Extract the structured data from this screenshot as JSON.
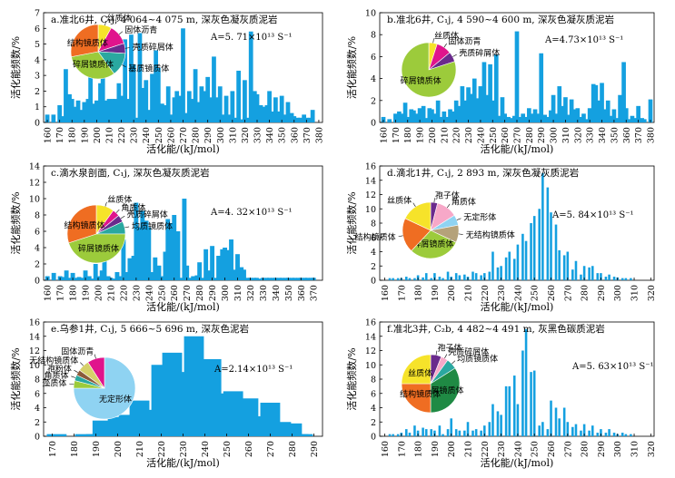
{
  "colors": {
    "bar": "#14a0e0",
    "axis": "#000000",
    "pie_stroke": "#ffffff",
    "leader": "#000000"
  },
  "chart_data": [
    {
      "id": "a",
      "type": "bar",
      "title": "a.准北6井, C₁j, 4 064~4 075 m, 深灰色凝灰质泥岩",
      "xlabel": "活化能/(kJ/mol)",
      "ylabel": "活化能频数/%",
      "ylim": [
        0,
        7
      ],
      "yticks": [
        0,
        1,
        2,
        3,
        4,
        5,
        6,
        7
      ],
      "xlim": [
        157,
        383
      ],
      "xticks": [
        160,
        170,
        180,
        190,
        200,
        210,
        220,
        230,
        240,
        250,
        260,
        270,
        280,
        290,
        300,
        310,
        320,
        330,
        340,
        350,
        360,
        370,
        380
      ],
      "annotation": "A=5. 71×10¹³ S⁻¹",
      "x": [
        160,
        165,
        170,
        172,
        175,
        178,
        180,
        183,
        185,
        188,
        190,
        193,
        195,
        198,
        200,
        203,
        205,
        208,
        210,
        213,
        215,
        218,
        220,
        223,
        225,
        228,
        230,
        233,
        235,
        238,
        240,
        243,
        245,
        248,
        250,
        253,
        255,
        258,
        260,
        263,
        265,
        268,
        270,
        273,
        275,
        278,
        280,
        283,
        285,
        288,
        290,
        293,
        295,
        298,
        300,
        303,
        305,
        308,
        310,
        313,
        315,
        318,
        320,
        323,
        325,
        328,
        330,
        333,
        335,
        338,
        340,
        343,
        345,
        348,
        350,
        353,
        355,
        358,
        360,
        363,
        365,
        368,
        370,
        373,
        375
      ],
      "values": [
        0.5,
        0.5,
        1.1,
        0.4,
        3.4,
        1.8,
        1.5,
        1.0,
        1.4,
        0.8,
        1.3,
        1.5,
        2.9,
        1.2,
        1.4,
        2.5,
        5.3,
        1.4,
        1.5,
        1.5,
        1.5,
        2.5,
        1.7,
        5.3,
        1.5,
        5.6,
        3.7,
        0.3,
        5.7,
        2.2,
        2.7,
        0.8,
        3.1,
        4.6,
        3.5,
        1.2,
        1.1,
        2.3,
        0.5,
        1.6,
        2.0,
        1.7,
        6.0,
        0.6,
        2.0,
        1.5,
        3.4,
        1.3,
        2.3,
        2.0,
        2.9,
        1.6,
        4.2,
        1.6,
        2.3,
        0.5,
        1.7,
        0.5,
        2.0,
        0.3,
        3.3,
        0.2,
        2.7,
        0.3,
        5.8,
        2.0,
        1.8,
        1.1,
        1.0,
        1.1,
        2.0,
        0.7,
        1.6,
        0.7,
        1.7,
        0.5,
        1.3,
        0.6,
        0.4,
        0.3,
        0.3,
        0.5,
        0.3,
        0.3,
        0.8
      ],
      "pie": {
        "slices": [
          {
            "label": "丝质体",
            "value": 8,
            "color": "#f6e32a"
          },
          {
            "label": "固体沥青",
            "value": 12,
            "color": "#e0148c"
          },
          {
            "label": "壳质碎屑体",
            "value": 6,
            "color": "#6a2a8c"
          },
          {
            "label": "基质镜质体",
            "value": 14,
            "color": "#2aa8a0"
          },
          {
            "label": "碎屑镜质体",
            "value": 32,
            "color": "#9ccb3b"
          },
          {
            "label": "结构镜质体",
            "value": 28,
            "color": "#ef6d22"
          }
        ]
      }
    },
    {
      "id": "b",
      "type": "bar",
      "title": "b.准北6井, C₁j, 4 590~4 600 m, 深灰色凝灰质泥岩",
      "xlabel": "活化能/(kJ/mol)",
      "ylabel": "活化能频数/%",
      "ylim": [
        0,
        10
      ],
      "yticks": [
        0,
        2,
        4,
        6,
        8,
        10
      ],
      "xlim": [
        157,
        383
      ],
      "xticks": [
        160,
        170,
        180,
        190,
        200,
        210,
        220,
        230,
        240,
        250,
        260,
        270,
        280,
        290,
        300,
        310,
        320,
        330,
        340,
        350,
        360,
        370,
        380
      ],
      "annotation": "A=4.73×10¹³ S⁻¹",
      "x": [
        160,
        165,
        170,
        173,
        175,
        178,
        180,
        183,
        185,
        188,
        190,
        193,
        195,
        198,
        200,
        203,
        205,
        208,
        210,
        213,
        215,
        218,
        220,
        223,
        225,
        228,
        230,
        233,
        235,
        238,
        240,
        243,
        245,
        248,
        250,
        253,
        255,
        258,
        260,
        263,
        265,
        268,
        270,
        273,
        275,
        278,
        280,
        283,
        285,
        288,
        290,
        293,
        295,
        298,
        300,
        303,
        305,
        308,
        310,
        313,
        315,
        318,
        320,
        323,
        325,
        328,
        330,
        333,
        335,
        338,
        340,
        343,
        345,
        348,
        350,
        353,
        355,
        358,
        360,
        363,
        365,
        368,
        370,
        373,
        375,
        380
      ],
      "values": [
        0.5,
        0.3,
        0.8,
        1.0,
        0.8,
        1.8,
        0.5,
        1.2,
        1.1,
        0.8,
        1.3,
        1.5,
        0.4,
        1.3,
        1.2,
        0.8,
        2.0,
        0.5,
        1.0,
        0.5,
        1.2,
        1.0,
        2.0,
        1.5,
        3.3,
        2.0,
        3.2,
        2.6,
        4.0,
        2.2,
        3.3,
        5.5,
        2.5,
        5.3,
        2.0,
        6.2,
        0.6,
        2.3,
        0.8,
        0.5,
        0.4,
        0.6,
        8.3,
        0.5,
        0.8,
        0.5,
        1.3,
        0.8,
        1.2,
        0.8,
        6.3,
        0.7,
        0.5,
        1.1,
        2.5,
        0.8,
        3.3,
        1.5,
        2.3,
        0.7,
        2.1,
        1.2,
        1.3,
        0.5,
        0.8,
        0.3,
        1.3,
        3.5,
        3.4,
        2.0,
        3.6,
        1.2,
        2.0,
        0.6,
        1.2,
        0.4,
        2.5,
        5.5,
        1.3,
        0.3,
        0.6,
        0.4,
        1.5,
        0.4,
        0.3,
        2.1
      ],
      "pie": {
        "slices": [
          {
            "label": "丝质体",
            "value": 5,
            "color": "#f6e32a"
          },
          {
            "label": "固体沥青",
            "value": 9,
            "color": "#e0148c"
          },
          {
            "label": "壳质碎屑体",
            "value": 6,
            "color": "#6a2a8c"
          },
          {
            "label": "碎屑镜质体",
            "value": 80,
            "color": "#9ccb3b"
          }
        ]
      }
    },
    {
      "id": "c",
      "type": "bar",
      "title": "c.滴水泉剖面, C₁j, 深灰色凝灰质泥岩",
      "xlabel": "活化能/(kJ/mol)",
      "ylabel": "活化能频数/%",
      "ylim": [
        0,
        14
      ],
      "yticks": [
        0,
        2,
        4,
        6,
        8,
        10,
        12,
        14
      ],
      "xlim": [
        157,
        377
      ],
      "xticks": [
        160,
        170,
        180,
        190,
        200,
        210,
        220,
        230,
        240,
        250,
        260,
        270,
        280,
        290,
        300,
        310,
        320,
        330,
        340,
        350,
        360,
        370
      ],
      "annotation": "A=4. 32×10¹³ S⁻¹",
      "x": [
        160,
        165,
        170,
        172,
        175,
        178,
        180,
        183,
        185,
        188,
        190,
        193,
        195,
        198,
        200,
        203,
        205,
        208,
        210,
        213,
        215,
        218,
        220,
        223,
        225,
        228,
        230,
        233,
        235,
        238,
        240,
        243,
        245,
        248,
        250,
        253,
        255,
        258,
        260,
        263,
        265,
        268,
        270,
        273,
        275,
        278,
        280,
        283,
        285,
        288,
        290,
        293,
        295,
        298,
        300,
        303,
        305,
        308,
        310,
        313,
        315,
        318,
        320,
        323,
        325,
        328,
        330,
        333,
        335,
        338,
        340,
        343,
        345,
        348,
        350,
        353,
        355,
        358,
        360,
        363,
        365,
        368,
        370
      ],
      "values": [
        0.5,
        0.9,
        0.5,
        0.4,
        1.2,
        0.3,
        0.9,
        0.3,
        0.4,
        0.3,
        1.2,
        0.5,
        0.2,
        2.0,
        0.5,
        1.2,
        3.0,
        0.5,
        0.3,
        0.2,
        1.0,
        0.5,
        5.0,
        1.0,
        2.7,
        3.0,
        9.5,
        6.5,
        8.5,
        7.3,
        6.5,
        1.0,
        2.8,
        1.8,
        0.5,
        3.5,
        7.5,
        7.0,
        8.0,
        6.0,
        0.3,
        10.0,
        1.8,
        0.3,
        0.5,
        0.6,
        2.2,
        0.3,
        3.8,
        1.2,
        4.2,
        0.3,
        3.0,
        3.8,
        4.0,
        3.7,
        5.0,
        1.3,
        3.2,
        1.6,
        1.3,
        0.3,
        0.3,
        0.3,
        0.3,
        0.2,
        0.3,
        0.3,
        0.3,
        0.3,
        0.3,
        0.3,
        0.3,
        0.3,
        0.3,
        0.3,
        0.3,
        0.3,
        0.3,
        0.3,
        0.3,
        0.3,
        0.3
      ],
      "pie": {
        "slices": [
          {
            "label": "丝质体",
            "value": 10,
            "color": "#f6e32a"
          },
          {
            "label": "角质体",
            "value": 4,
            "color": "#e0148c"
          },
          {
            "label": "壳质碎屑体",
            "value": 4,
            "color": "#6a2a8c"
          },
          {
            "label": "均质镜质体",
            "value": 7,
            "color": "#2aa8a0"
          },
          {
            "label": "碎屑镜质体",
            "value": 45,
            "color": "#9ccb3b"
          },
          {
            "label": "结构镜质体",
            "value": 30,
            "color": "#ef6d22"
          }
        ]
      }
    },
    {
      "id": "d",
      "type": "bar",
      "title": "d.滴北1井, C₁j, 2 893 m, 深灰色凝灰质泥岩",
      "xlabel": "活化能/(kJ/mol)",
      "ylabel": "活化能频数/%",
      "ylim": [
        0,
        16
      ],
      "yticks": [
        0,
        2,
        4,
        6,
        8,
        10,
        12,
        14,
        16
      ],
      "xlim": [
        157,
        322
      ],
      "xticks": [
        160,
        170,
        180,
        190,
        200,
        210,
        220,
        230,
        240,
        250,
        260,
        270,
        280,
        290,
        300,
        310,
        320
      ],
      "annotation": "A=5. 84×10¹³ S⁻¹",
      "x": [
        163,
        165,
        168,
        170,
        173,
        175,
        178,
        180,
        183,
        185,
        188,
        190,
        193,
        195,
        198,
        200,
        203,
        205,
        208,
        210,
        213,
        215,
        218,
        220,
        223,
        225,
        228,
        230,
        233,
        235,
        238,
        240,
        243,
        245,
        248,
        250,
        253,
        255,
        258,
        260,
        263,
        265,
        268,
        270,
        273,
        275,
        278,
        280,
        283,
        285,
        288,
        290,
        293,
        295,
        298,
        300,
        303,
        305,
        308
      ],
      "values": [
        0.3,
        0.3,
        0.3,
        0.3,
        0.5,
        0.3,
        0.3,
        0.7,
        0.4,
        1.0,
        0.3,
        1.0,
        0.5,
        0.3,
        1.2,
        0.5,
        1.0,
        0.7,
        0.8,
        0.5,
        1.2,
        1.0,
        0.7,
        1.0,
        1.2,
        4.0,
        1.8,
        2.0,
        3.2,
        4.0,
        3.0,
        5.0,
        6.5,
        5.5,
        8.0,
        9.0,
        10.0,
        15.0,
        13.0,
        9.5,
        7.8,
        4.2,
        3.5,
        4.0,
        1.5,
        2.7,
        0.8,
        2.0,
        1.8,
        2.0,
        1.0,
        1.0,
        0.5,
        0.8,
        0.5,
        0.4,
        0.3,
        0.3,
        0.3
      ],
      "pie": {
        "slices": [
          {
            "label": "孢子体",
            "value": 4,
            "color": "#6a2a8c"
          },
          {
            "label": "角质体",
            "value": 12,
            "color": "#f7a8c8"
          },
          {
            "label": "无定形体",
            "value": 6,
            "color": "#8fd3f2"
          },
          {
            "label": "无结构镜质体",
            "value": 10,
            "color": "#b5a27a"
          },
          {
            "label": "碎屑镜质体",
            "value": 30,
            "color": "#9ccb3b"
          },
          {
            "label": "结构镜质体",
            "value": 20,
            "color": "#ef6d22"
          },
          {
            "label": "丝质体",
            "value": 18,
            "color": "#f6e32a"
          }
        ]
      }
    },
    {
      "id": "e",
      "type": "bar",
      "title": "e.乌参1井, C₁j, 5 666~5 696 m, 深灰色泥岩",
      "xlabel": "活化能/(kJ/mol)",
      "ylabel": "活化能频数/%",
      "ylim": [
        0,
        16
      ],
      "yticks": [
        0,
        2,
        4,
        6,
        8,
        10,
        12,
        14,
        16
      ],
      "xlim": [
        166,
        294
      ],
      "xticks": [
        170,
        180,
        190,
        200,
        210,
        220,
        230,
        240,
        250,
        260,
        270,
        280,
        290
      ],
      "annotation": "A=2.14×10¹³ S⁻¹",
      "x": [
        172,
        185,
        190,
        193,
        195,
        198,
        200,
        203,
        205,
        208,
        210,
        213,
        215,
        218,
        220,
        223,
        225,
        228,
        230,
        233,
        235,
        238,
        240,
        243,
        245,
        248,
        250,
        253,
        255,
        258,
        260,
        263,
        265,
        268,
        270,
        273,
        275,
        278,
        280,
        283,
        285
      ],
      "values": [
        0.3,
        0.3,
        0.3,
        2.2,
        0.3,
        2.0,
        2.7,
        1.7,
        3.0,
        0.3,
        5.0,
        1.2,
        3.7,
        0.4,
        10.0,
        0.3,
        11.7,
        0.3,
        9.0,
        0.3,
        14.0,
        6.8,
        0.3,
        10.8,
        0.3,
        6.0,
        0.3,
        6.3,
        5.2,
        0.3,
        5.3,
        0.3,
        2.8,
        0.3,
        4.7,
        0.3,
        2.0,
        0.3,
        1.8,
        0.3,
        0.3
      ],
      "pie": {
        "slices": [
          {
            "label": "无定形体",
            "value": 75,
            "color": "#8fd3f2"
          },
          {
            "label": "藻质体",
            "value": 4,
            "color": "#9ccb3b"
          },
          {
            "label": "角质体",
            "value": 3,
            "color": "#2aa8a0"
          },
          {
            "label": "孢粉体",
            "value": 3,
            "color": "#8a5a3a"
          },
          {
            "label": "无结构镜质体",
            "value": 6,
            "color": "#d6d06a"
          },
          {
            "label": "固体沥青",
            "value": 9,
            "color": "#e0148c"
          }
        ]
      }
    },
    {
      "id": "f",
      "type": "bar",
      "title": "f.准北3井, C₂b, 4 482~4 491 m, 灰黑色碳质泥岩",
      "xlabel": "活化能/(kJ/mol)",
      "ylabel": "活化能频数/%",
      "ylim": [
        0,
        16
      ],
      "yticks": [
        0,
        2,
        4,
        6,
        8,
        10,
        12,
        14,
        16
      ],
      "xlim": [
        157,
        322
      ],
      "xticks": [
        160,
        170,
        180,
        190,
        200,
        210,
        220,
        230,
        240,
        250,
        260,
        270,
        280,
        290,
        300,
        310,
        320
      ],
      "annotation": "A=5. 63×10¹³ S⁻¹",
      "x": [
        163,
        165,
        168,
        170,
        173,
        175,
        178,
        180,
        183,
        185,
        188,
        190,
        193,
        195,
        198,
        200,
        203,
        205,
        208,
        210,
        213,
        215,
        218,
        220,
        223,
        225,
        228,
        230,
        233,
        235,
        238,
        240,
        243,
        245,
        248,
        250,
        253,
        255,
        258,
        260,
        263,
        265,
        268,
        270,
        273,
        275,
        278,
        280,
        283,
        285,
        288,
        290,
        293,
        295,
        298,
        300,
        303,
        305,
        308
      ],
      "values": [
        0.3,
        0.3,
        0.3,
        0.5,
        1.0,
        0.5,
        1.5,
        0.8,
        1.2,
        1.0,
        1.0,
        0.8,
        1.5,
        0.3,
        1.0,
        2.5,
        1.0,
        0.8,
        0.8,
        2.0,
        0.8,
        1.0,
        0.8,
        1.5,
        2.0,
        4.5,
        3.5,
        3.0,
        7.0,
        7.0,
        8.5,
        4.5,
        12.0,
        15.0,
        9.0,
        9.2,
        1.5,
        2.0,
        1.0,
        5.0,
        4.0,
        2.5,
        4.0,
        2.0,
        1.3,
        1.7,
        0.8,
        1.7,
        0.8,
        1.5,
        0.5,
        1.0,
        0.5,
        1.0,
        0.5,
        0.3,
        0.5,
        0.3,
        0.3
      ],
      "pie": {
        "slices": [
          {
            "label": "孢子体",
            "value": 6,
            "color": "#6a2a8c"
          },
          {
            "label": "壳质碎屑体",
            "value": 4,
            "color": "#f7a8c8"
          },
          {
            "label": "均质镜质体",
            "value": 6,
            "color": "#2aa8a0"
          },
          {
            "label": "碎屑镜质体",
            "value": 34,
            "color": "#1f8a44"
          },
          {
            "label": "结构镜质体",
            "value": 25,
            "color": "#ef6d22"
          },
          {
            "label": "丝质体",
            "value": 25,
            "color": "#f6e32a"
          }
        ]
      }
    }
  ]
}
